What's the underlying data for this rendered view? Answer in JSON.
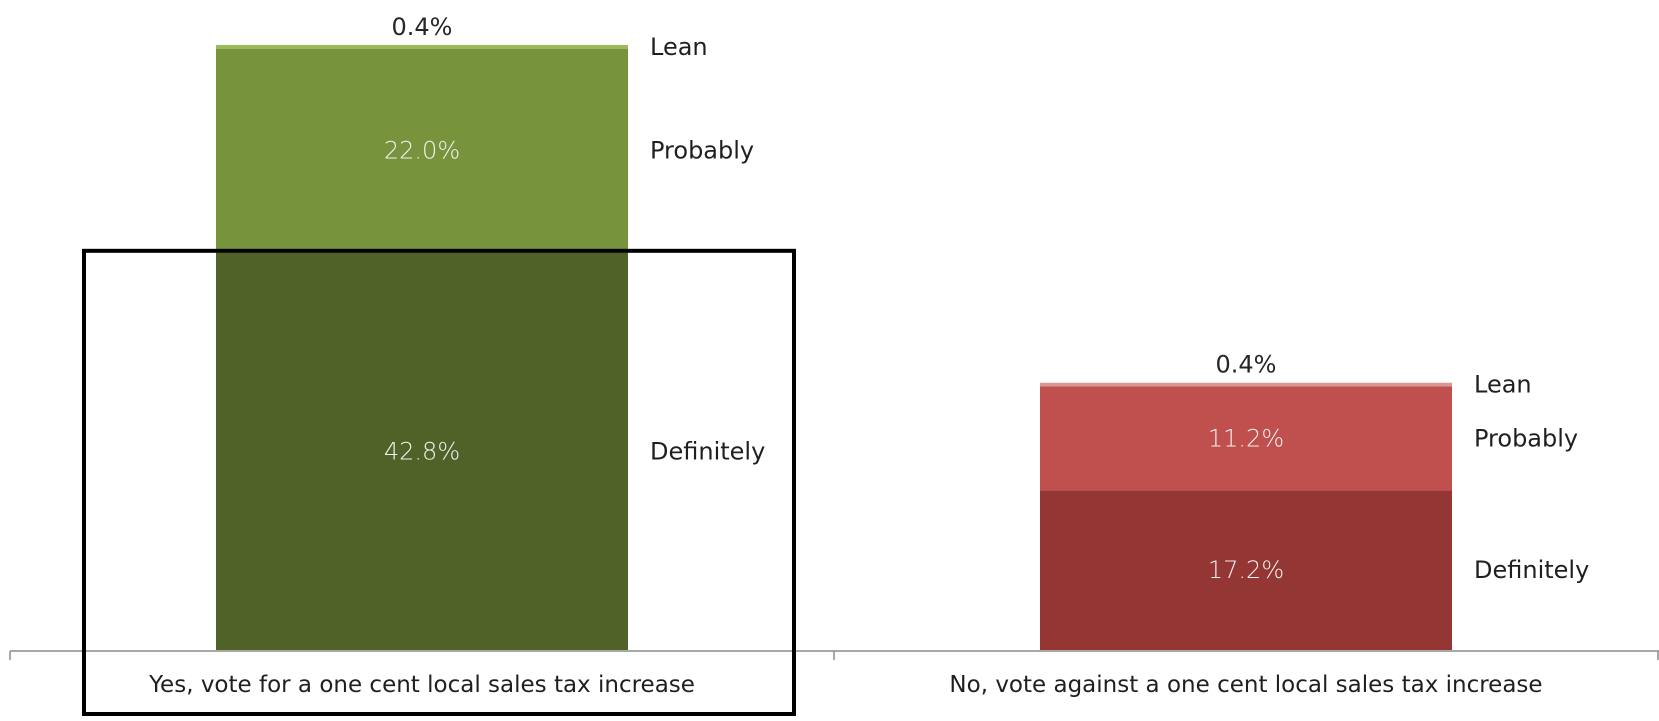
{
  "chart_data": {
    "type": "bar",
    "stacked": true,
    "title": "",
    "xlabel": "",
    "ylabel": "",
    "categories": [
      "Yes, vote for a one cent local sales tax increase",
      "No, vote against a one cent  local sales tax increase"
    ],
    "series": [
      {
        "name": "Definitely",
        "values": [
          42.8,
          17.2
        ],
        "value_labels": [
          "42.8%",
          "17.2%"
        ]
      },
      {
        "name": "Probably",
        "values": [
          22.0,
          11.2
        ],
        "value_labels": [
          "22.0%",
          "11.2%"
        ]
      },
      {
        "name": "Lean",
        "values": [
          0.4,
          0.4
        ],
        "value_labels": [
          "0.4%",
          "0.4%"
        ]
      }
    ],
    "colors": {
      "yes": [
        "#506228",
        "#77933c",
        "#9bbb59"
      ],
      "no": [
        "#943634",
        "#c0504d",
        "#d99694"
      ]
    },
    "highlight": {
      "category_index": 0,
      "series_index": 0,
      "color": "#000000"
    },
    "grid": false,
    "legend": "none",
    "tier_labels_position": "right of each bar segment"
  }
}
